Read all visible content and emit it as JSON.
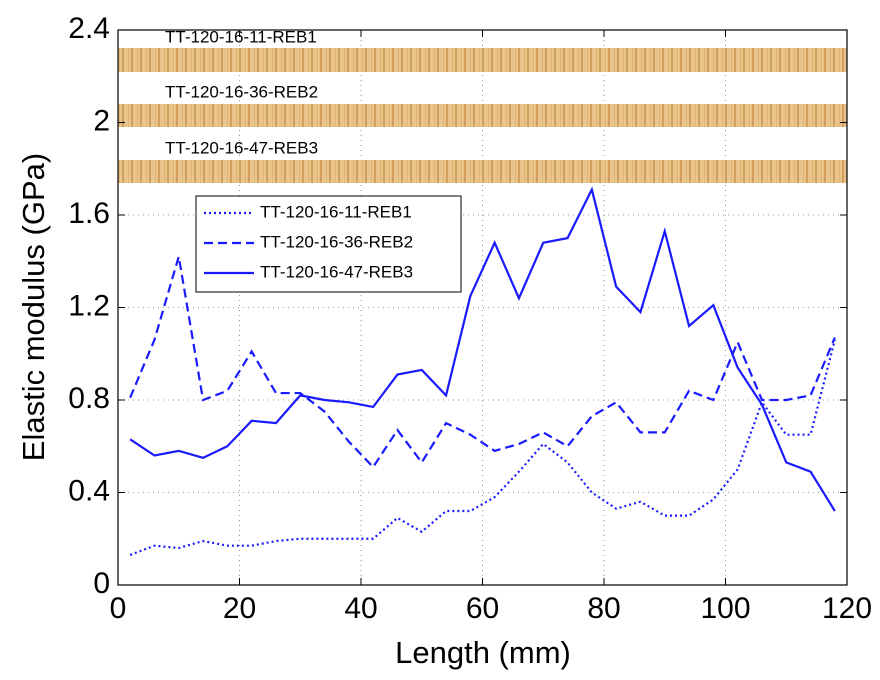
{
  "chart_data": {
    "type": "line",
    "x_label": "Length (mm)",
    "y_label": "Elastic modulus (GPa)",
    "annotations": [
      "TT-120-16-11-REB1",
      "TT-120-16-36-REB2",
      "TT-120-16-47-REB3"
    ],
    "x": [
      2,
      6,
      10,
      14,
      18,
      22,
      26,
      30,
      34,
      38,
      42,
      46,
      50,
      54,
      58,
      62,
      66,
      70,
      74,
      78,
      82,
      86,
      90,
      94,
      98,
      102,
      106,
      110,
      114,
      118
    ],
    "series": [
      {
        "name": "TT-120-16-11-REB1",
        "color": "#1a1aff",
        "style": "dotted",
        "values": [
          0.13,
          0.17,
          0.16,
          0.19,
          0.17,
          0.17,
          0.19,
          0.2,
          0.2,
          0.2,
          0.2,
          0.29,
          0.23,
          0.32,
          0.32,
          0.38,
          0.49,
          0.61,
          0.53,
          0.4,
          0.33,
          0.36,
          0.3,
          0.3,
          0.37,
          0.5,
          0.79,
          0.65,
          0.65,
          1.06
        ]
      },
      {
        "name": "TT-120-16-36-REB2",
        "color": "#1a1aff",
        "style": "dashed",
        "values": [
          0.81,
          1.06,
          1.42,
          0.8,
          0.84,
          1.01,
          0.83,
          0.83,
          0.75,
          0.62,
          0.51,
          0.67,
          0.53,
          0.7,
          0.65,
          0.58,
          0.61,
          0.66,
          0.6,
          0.73,
          0.79,
          0.66,
          0.66,
          0.84,
          0.8,
          1.05,
          0.8,
          0.8,
          0.82,
          1.07
        ]
      },
      {
        "name": "TT-120-16-47-REB3",
        "color": "#1a1aff",
        "style": "solid",
        "values": [
          0.63,
          0.56,
          0.58,
          0.55,
          0.6,
          0.71,
          0.7,
          0.82,
          0.8,
          0.79,
          0.77,
          0.91,
          0.93,
          0.82,
          1.25,
          1.48,
          1.24,
          1.48,
          1.5,
          1.71,
          1.29,
          1.18,
          1.53,
          1.12,
          1.21,
          0.94,
          0.78,
          0.53,
          0.49,
          0.32
        ]
      }
    ],
    "xlim": [
      0,
      120
    ],
    "xticks": [
      0,
      20,
      40,
      60,
      80,
      100,
      120
    ],
    "ylim": [
      0,
      2.4
    ],
    "yticks": [
      0,
      0.4,
      0.8,
      1.2,
      1.6,
      2,
      2.4
    ],
    "grid": true
  }
}
